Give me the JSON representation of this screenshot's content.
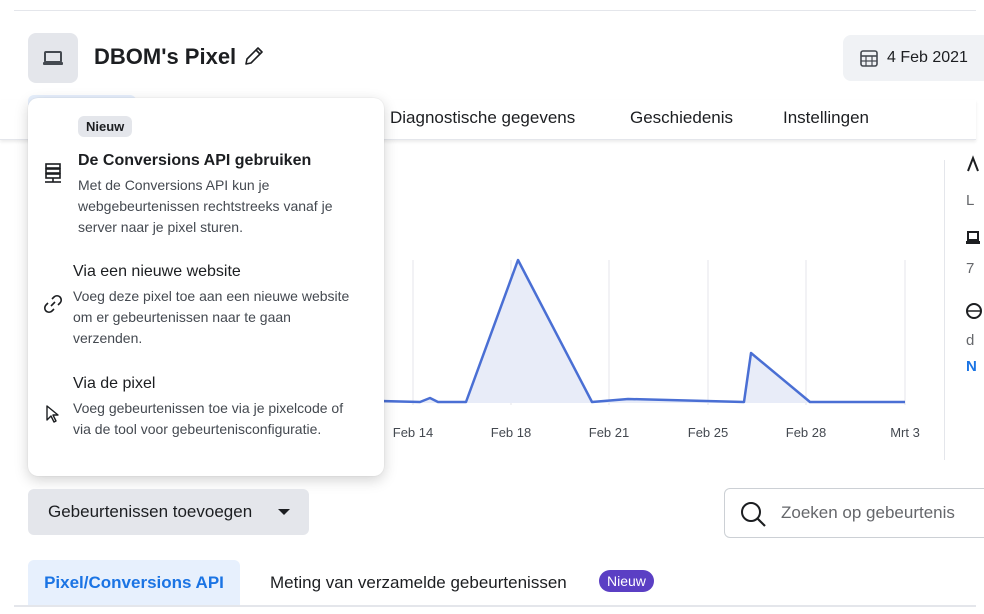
{
  "header": {
    "title": "DBOM's Pixel",
    "date_label": "4 Feb 2021"
  },
  "tabs": [
    {
      "label": "Diagnostische gegevens"
    },
    {
      "label": "Geschiedenis"
    },
    {
      "label": "Instellingen"
    }
  ],
  "dropdown": {
    "badge": "Nieuw",
    "items": [
      {
        "title": "De Conversions API gebruiken",
        "desc": "Met de Conversions API kun je webgebeurtenissen rechtstreeks vanaf je server naar je pixel sturen.",
        "icon": "server-icon"
      },
      {
        "title": "Via een nieuwe website",
        "desc": "Voeg deze pixel toe aan een nieuwe website om er gebeurtenissen naar te gaan verzenden.",
        "icon": "link-icon"
      },
      {
        "title": "Via de pixel",
        "desc": "Voeg gebeurtenissen toe via je pixelcode of via de tool voor gebeurtenisconfiguratie.",
        "icon": "cursor-icon"
      }
    ]
  },
  "chart_data": {
    "type": "area",
    "categories": [
      "Feb 14",
      "Feb 18",
      "Feb 21",
      "Feb 25",
      "Feb 28",
      "Mrt 3"
    ],
    "series_color": "#4a6fd4"
  },
  "sidebar_fragments": [
    "L",
    "7",
    "d",
    "N"
  ],
  "actions": {
    "add_events_label": "Gebeurtenissen toevoegen",
    "search_placeholder": "Zoeken op gebeurtenis"
  },
  "subtabs": {
    "active": "Pixel/Conversions API",
    "other": "Meting van verzamelde gebeurtenissen",
    "badge": "Nieuw"
  }
}
